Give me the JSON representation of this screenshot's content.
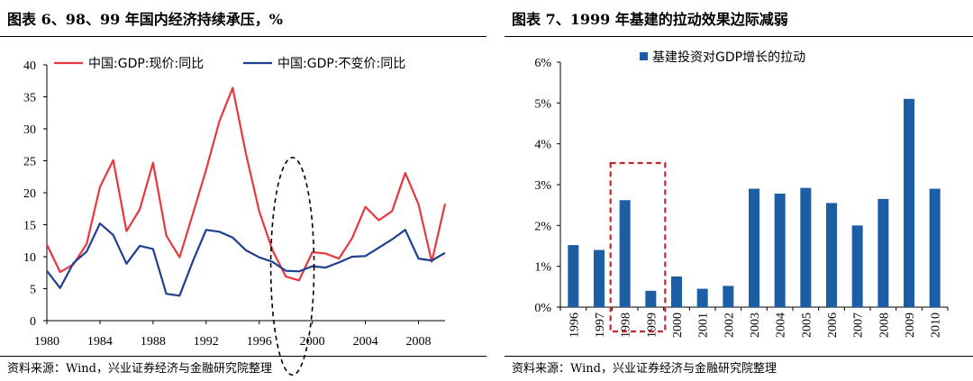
{
  "left_panel": {
    "title": "图表 6、98、99 年国内经济持续承压，%",
    "source": "资料来源：Wind，兴业证券经济与金融研究院整理"
  },
  "right_panel": {
    "title": "图表 7、1999 年基建的拉动效果边际减弱",
    "source": "资料来源：Wind，兴业证券经济与金融研究院整理"
  },
  "colors": {
    "series_red": "#e8383d",
    "series_blue": "#1f3f8f",
    "bar": "#1b5ea6",
    "highlight_box": "#c0282d"
  },
  "chart_data": [
    {
      "type": "line",
      "title": "",
      "xlabel": "",
      "ylabel": "",
      "x": [
        1980,
        1981,
        1982,
        1983,
        1984,
        1985,
        1986,
        1987,
        1988,
        1989,
        1990,
        1991,
        1992,
        1993,
        1994,
        1995,
        1996,
        1997,
        1998,
        1999,
        2000,
        2001,
        2002,
        2003,
        2004,
        2005,
        2006,
        2007,
        2008,
        2009,
        2010
      ],
      "series": [
        {
          "name": "中国:GDP:现价:同比",
          "values": [
            11.9,
            7.6,
            8.8,
            12.0,
            20.9,
            25.1,
            14.0,
            17.4,
            24.7,
            13.3,
            9.9,
            16.7,
            23.6,
            31.2,
            36.4,
            26.1,
            17.1,
            11.0,
            6.9,
            6.3,
            10.7,
            10.5,
            9.7,
            12.9,
            17.8,
            15.7,
            17.1,
            23.1,
            18.2,
            9.2,
            18.3
          ]
        },
        {
          "name": "中国:GDP:不变价:同比",
          "values": [
            7.8,
            5.1,
            9.0,
            10.8,
            15.2,
            13.4,
            8.9,
            11.7,
            11.2,
            4.2,
            3.9,
            9.3,
            14.2,
            13.9,
            13.0,
            11.0,
            9.9,
            9.2,
            7.8,
            7.7,
            8.5,
            8.3,
            9.1,
            10.0,
            10.1,
            11.4,
            12.7,
            14.2,
            9.7,
            9.4,
            10.6
          ]
        }
      ],
      "xlim": [
        1980,
        2010
      ],
      "xticks": [
        "1980",
        "1984",
        "1988",
        "1992",
        "1996",
        "2000",
        "2004",
        "2008"
      ],
      "ylim": [
        0,
        40
      ],
      "yticks": [
        "0",
        "5",
        "10",
        "15",
        "20",
        "25",
        "30",
        "35",
        "40"
      ],
      "grid": false,
      "legend_position": "top",
      "annotation": "dashed ellipse around 1998-1999"
    },
    {
      "type": "bar",
      "title": "",
      "xlabel": "",
      "ylabel": "",
      "categories": [
        "1996",
        "1997",
        "1998",
        "1999",
        "2000",
        "2001",
        "2002",
        "2003",
        "2004",
        "2005",
        "2006",
        "2007",
        "2008",
        "2009",
        "2010"
      ],
      "series": [
        {
          "name": "基建投资对GDP增长的拉动",
          "values": [
            1.52,
            1.4,
            2.62,
            0.4,
            0.75,
            0.45,
            0.52,
            2.9,
            2.78,
            2.92,
            2.55,
            2.0,
            2.65,
            5.1,
            2.9
          ]
        }
      ],
      "ylim": [
        0,
        6
      ],
      "yticks": [
        "0%",
        "1%",
        "2%",
        "3%",
        "4%",
        "5%",
        "6%"
      ],
      "grid": false,
      "legend_position": "top",
      "annotation": "dashed red box around 1998-1999"
    }
  ]
}
